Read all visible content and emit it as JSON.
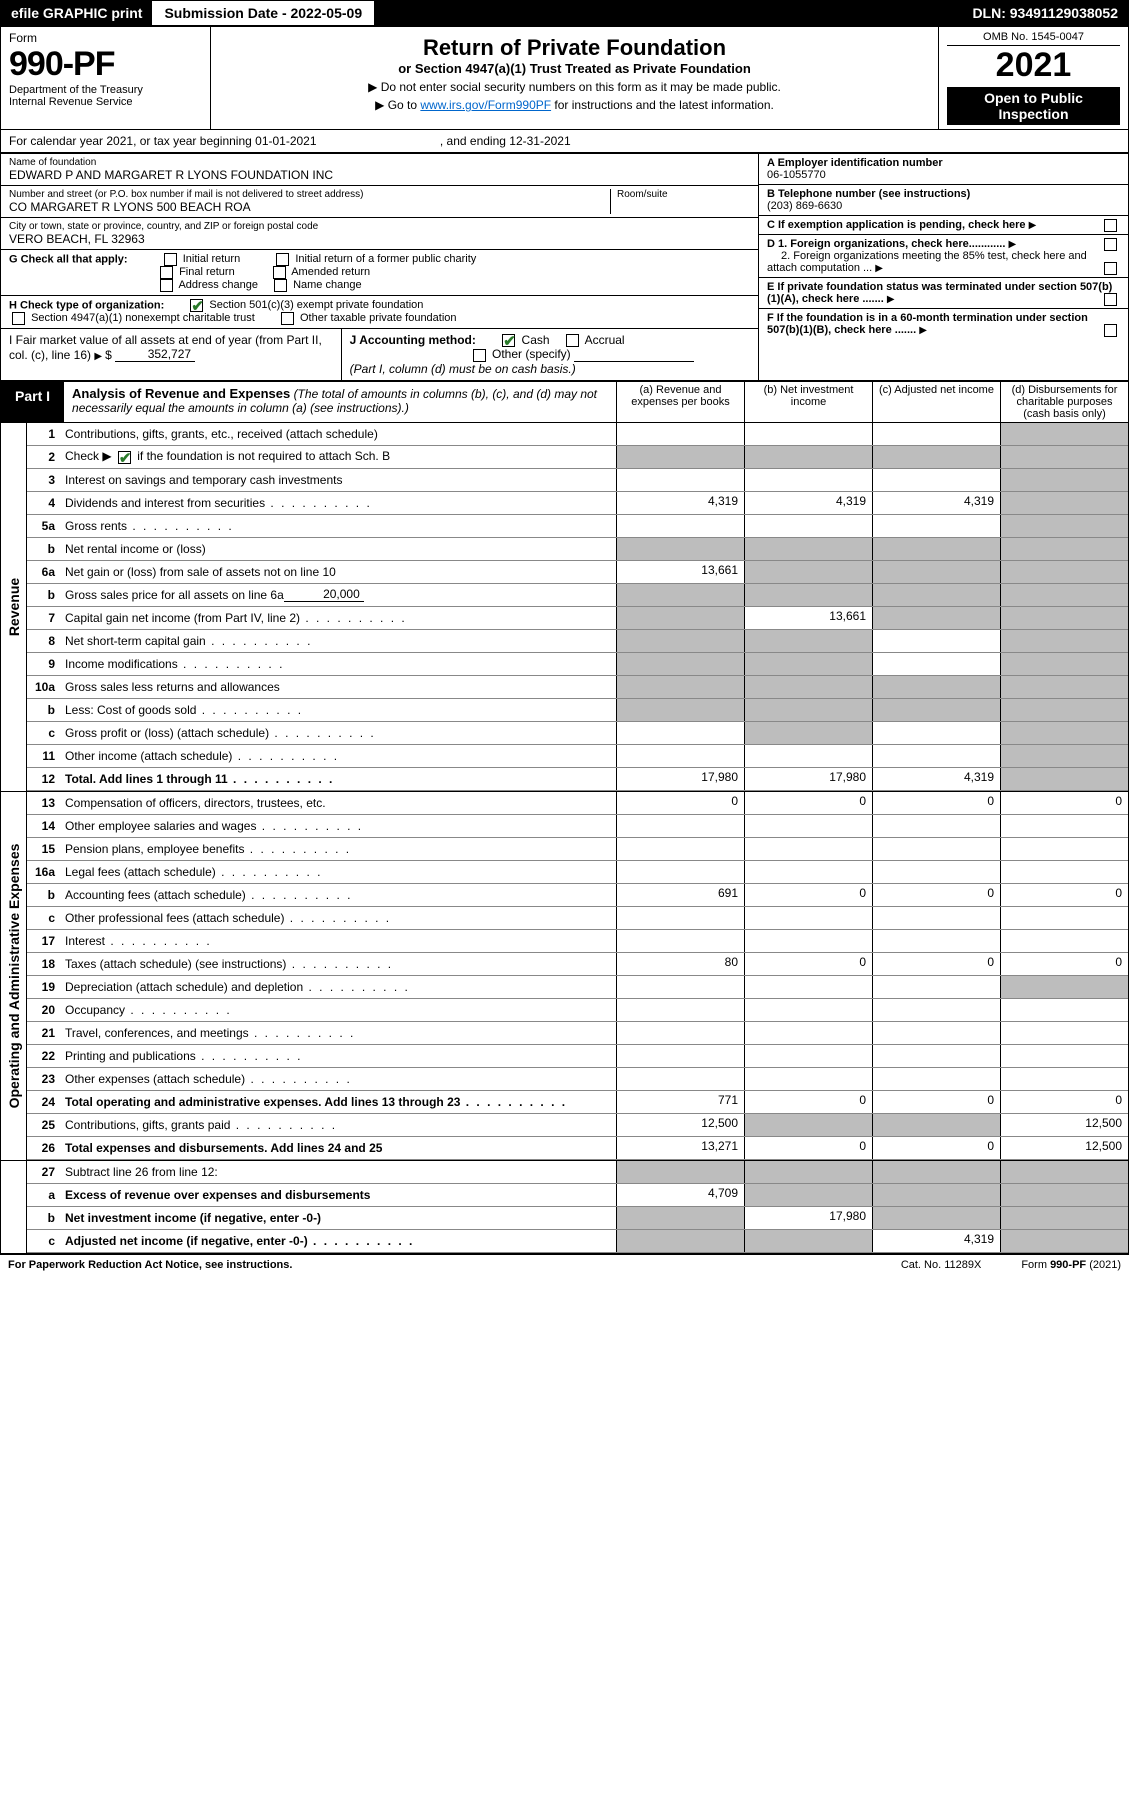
{
  "colors": {
    "accent": "#2a7a2a",
    "shade": "#bdbdbd"
  },
  "topbar": {
    "efile": "efile GRAPHIC print",
    "subdate_label": "Submission Date - 2022-05-09",
    "dln": "DLN: 93491129038052"
  },
  "header": {
    "form_word": "Form",
    "form_no": "990-PF",
    "dept1": "Department of the Treasury",
    "dept2": "Internal Revenue Service",
    "title": "Return of Private Foundation",
    "subtitle": "or Section 4947(a)(1) Trust Treated as Private Foundation",
    "instr1": "▶ Do not enter social security numbers on this form as it may be made public.",
    "instr2_pre": "▶ Go to ",
    "instr2_link": "www.irs.gov/Form990PF",
    "instr2_post": " for instructions and the latest information.",
    "omb": "OMB No. 1545-0047",
    "year": "2021",
    "otp": "Open to Public Inspection"
  },
  "cal": {
    "text1": "For calendar year 2021, or tax year beginning 01-01-2021",
    "text2": ", and ending 12-31-2021"
  },
  "entity": {
    "name_lab": "Name of foundation",
    "name": "EDWARD P AND MARGARET R LYONS FOUNDATION INC",
    "addr_lab": "Number and street (or P.O. box number if mail is not delivered to street address)",
    "addr": "CO MARGARET R LYONS 500 BEACH ROA",
    "room_lab": "Room/suite",
    "city_lab": "City or town, state or province, country, and ZIP or foreign postal code",
    "city": "VERO BEACH, FL  32963",
    "a_lab": "A Employer identification number",
    "a_val": "06-1055770",
    "b_lab": "B Telephone number (see instructions)",
    "b_val": "(203) 869-6630",
    "c_lab": "C If exemption application is pending, check here",
    "d1": "D 1. Foreign organizations, check here............",
    "d2": "2. Foreign organizations meeting the 85% test, check here and attach computation ...",
    "e_lab": "E  If private foundation status was terminated under section 507(b)(1)(A), check here .......",
    "f_lab": "F  If the foundation is in a 60-month termination under section 507(b)(1)(B), check here .......",
    "g_lab": "G Check all that apply:",
    "g1": "Initial return",
    "g2": "Initial return of a former public charity",
    "g3": "Final return",
    "g4": "Amended return",
    "g5": "Address change",
    "g6": "Name change",
    "h_lab": "H Check type of organization:",
    "h1": "Section 501(c)(3) exempt private foundation",
    "h2": "Section 4947(a)(1) nonexempt charitable trust",
    "h3": "Other taxable private foundation",
    "i_lab": "I Fair market value of all assets at end of year (from Part II, col. (c), line 16)",
    "i_val": "352,727",
    "j_lab": "J Accounting method:",
    "j1": "Cash",
    "j2": "Accrual",
    "j3": "Other (specify)",
    "j_note": "(Part I, column (d) must be on cash basis.)"
  },
  "part1": {
    "tag": "Part I",
    "title": "Analysis of Revenue and Expenses",
    "title_note": " (The total of amounts in columns (b), (c), and (d) may not necessarily equal the amounts in column (a) (see instructions).)",
    "cols": {
      "a": "(a)  Revenue and expenses per books",
      "b": "(b)  Net investment income",
      "c": "(c)  Adjusted net income",
      "d": "(d)  Disbursements for charitable purposes (cash basis only)"
    }
  },
  "side": {
    "rev": "Revenue",
    "exp": "Operating and Administrative Expenses"
  },
  "lines": {
    "l1": {
      "n": "1",
      "t": "Contributions, gifts, grants, etc., received (attach schedule)"
    },
    "l2": {
      "n": "2",
      "t_pre": "Check ▶ ",
      "t_post": " if the foundation is not required to attach Sch. B"
    },
    "l3": {
      "n": "3",
      "t": "Interest on savings and temporary cash investments"
    },
    "l4": {
      "n": "4",
      "t": "Dividends and interest from securities",
      "a": "4,319",
      "b": "4,319",
      "c": "4,319"
    },
    "l5a": {
      "n": "5a",
      "t": "Gross rents"
    },
    "l5b": {
      "n": "b",
      "t": "Net rental income or (loss)"
    },
    "l6a": {
      "n": "6a",
      "t": "Net gain or (loss) from sale of assets not on line 10",
      "a": "13,661"
    },
    "l6b": {
      "n": "b",
      "t": "Gross sales price for all assets on line 6a",
      "inline": "20,000"
    },
    "l7": {
      "n": "7",
      "t": "Capital gain net income (from Part IV, line 2)",
      "b": "13,661"
    },
    "l8": {
      "n": "8",
      "t": "Net short-term capital gain"
    },
    "l9": {
      "n": "9",
      "t": "Income modifications"
    },
    "l10a": {
      "n": "10a",
      "t": "Gross sales less returns and allowances"
    },
    "l10b": {
      "n": "b",
      "t": "Less: Cost of goods sold"
    },
    "l10c": {
      "n": "c",
      "t": "Gross profit or (loss) (attach schedule)"
    },
    "l11": {
      "n": "11",
      "t": "Other income (attach schedule)"
    },
    "l12": {
      "n": "12",
      "t": "Total. Add lines 1 through 11",
      "a": "17,980",
      "b": "17,980",
      "c": "4,319"
    },
    "l13": {
      "n": "13",
      "t": "Compensation of officers, directors, trustees, etc.",
      "a": "0",
      "b": "0",
      "c": "0",
      "d": "0"
    },
    "l14": {
      "n": "14",
      "t": "Other employee salaries and wages"
    },
    "l15": {
      "n": "15",
      "t": "Pension plans, employee benefits"
    },
    "l16a": {
      "n": "16a",
      "t": "Legal fees (attach schedule)"
    },
    "l16b": {
      "n": "b",
      "t": "Accounting fees (attach schedule)",
      "a": "691",
      "b": "0",
      "c": "0",
      "d": "0"
    },
    "l16c": {
      "n": "c",
      "t": "Other professional fees (attach schedule)"
    },
    "l17": {
      "n": "17",
      "t": "Interest"
    },
    "l18": {
      "n": "18",
      "t": "Taxes (attach schedule) (see instructions)",
      "a": "80",
      "b": "0",
      "c": "0",
      "d": "0"
    },
    "l19": {
      "n": "19",
      "t": "Depreciation (attach schedule) and depletion"
    },
    "l20": {
      "n": "20",
      "t": "Occupancy"
    },
    "l21": {
      "n": "21",
      "t": "Travel, conferences, and meetings"
    },
    "l22": {
      "n": "22",
      "t": "Printing and publications"
    },
    "l23": {
      "n": "23",
      "t": "Other expenses (attach schedule)"
    },
    "l24": {
      "n": "24",
      "t": "Total operating and administrative expenses. Add lines 13 through 23",
      "a": "771",
      "b": "0",
      "c": "0",
      "d": "0"
    },
    "l25": {
      "n": "25",
      "t": "Contributions, gifts, grants paid",
      "a": "12,500",
      "d": "12,500"
    },
    "l26": {
      "n": "26",
      "t": "Total expenses and disbursements. Add lines 24 and 25",
      "a": "13,271",
      "b": "0",
      "c": "0",
      "d": "12,500"
    },
    "l27": {
      "n": "27",
      "t": "Subtract line 26 from line 12:"
    },
    "l27a": {
      "n": "a",
      "t": "Excess of revenue over expenses and disbursements",
      "a": "4,709"
    },
    "l27b": {
      "n": "b",
      "t": "Net investment income (if negative, enter -0-)",
      "b": "17,980"
    },
    "l27c": {
      "n": "c",
      "t": "Adjusted net income (if negative, enter -0-)",
      "c": "4,319"
    }
  },
  "footer": {
    "left": "For Paperwork Reduction Act Notice, see instructions.",
    "mid": "Cat. No. 11289X",
    "right": "Form 990-PF (2021)"
  }
}
